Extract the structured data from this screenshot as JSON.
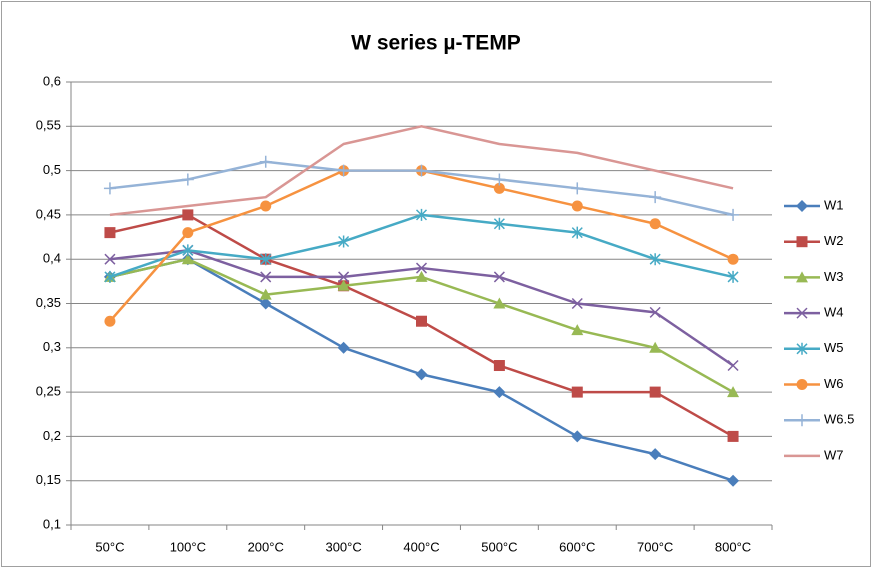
{
  "chart_data": {
    "type": "line",
    "title": "W series   µ-TEMP",
    "categories": [
      "50°C",
      "100°C",
      "200°C",
      "300°C",
      "400°C",
      "500°C",
      "600°C",
      "700°C",
      "800°C"
    ],
    "ylim": [
      0.1,
      0.6
    ],
    "yticks": [
      {
        "value": 0.1,
        "label": "0,1"
      },
      {
        "value": 0.15,
        "label": "0,15"
      },
      {
        "value": 0.2,
        "label": "0,2"
      },
      {
        "value": 0.25,
        "label": "0,25"
      },
      {
        "value": 0.3,
        "label": "0,3"
      },
      {
        "value": 0.35,
        "label": "0,35"
      },
      {
        "value": 0.4,
        "label": "0,4"
      },
      {
        "value": 0.45,
        "label": "0,45"
      },
      {
        "value": 0.5,
        "label": "0,5"
      },
      {
        "value": 0.55,
        "label": "0,55"
      },
      {
        "value": 0.6,
        "label": "0,6"
      }
    ],
    "grid": true,
    "legend": "right",
    "series": [
      {
        "name": "W1",
        "color": "#4a7ebb",
        "marker": "diamond",
        "values": [
          0.38,
          0.4,
          0.35,
          0.3,
          0.27,
          0.25,
          0.2,
          0.18,
          0.15
        ]
      },
      {
        "name": "W2",
        "color": "#be4b48",
        "marker": "square",
        "values": [
          0.43,
          0.45,
          0.4,
          0.37,
          0.33,
          0.28,
          0.25,
          0.25,
          0.2
        ]
      },
      {
        "name": "W3",
        "color": "#98b954",
        "marker": "triangle",
        "values": [
          0.38,
          0.4,
          0.36,
          0.37,
          0.38,
          0.35,
          0.32,
          0.3,
          0.25
        ]
      },
      {
        "name": "W4",
        "color": "#7d60a0",
        "marker": "x",
        "values": [
          0.4,
          0.41,
          0.38,
          0.38,
          0.39,
          0.38,
          0.35,
          0.34,
          0.28
        ]
      },
      {
        "name": "W5",
        "color": "#46aac5",
        "marker": "star",
        "values": [
          0.38,
          0.41,
          0.4,
          0.42,
          0.45,
          0.44,
          0.43,
          0.4,
          0.38
        ]
      },
      {
        "name": "W6",
        "color": "#f69240",
        "marker": "circle",
        "values": [
          0.33,
          0.43,
          0.46,
          0.5,
          0.5,
          0.48,
          0.46,
          0.44,
          0.4
        ]
      },
      {
        "name": "W6.5",
        "color": "#95b3d7",
        "marker": "plus",
        "values": [
          0.48,
          0.49,
          0.51,
          0.5,
          0.5,
          0.49,
          0.48,
          0.47,
          0.45
        ]
      },
      {
        "name": "W7",
        "color": "#d99694",
        "marker": "none",
        "values": [
          0.45,
          0.46,
          0.47,
          0.53,
          0.55,
          0.53,
          0.52,
          0.5,
          0.48
        ]
      }
    ]
  }
}
